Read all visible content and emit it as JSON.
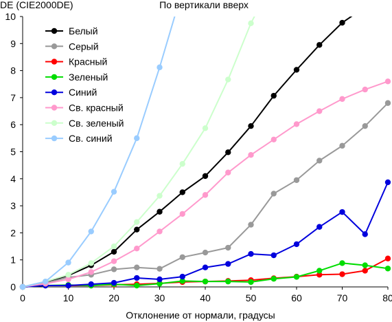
{
  "chart_data": {
    "type": "line",
    "title": "По вертикали вверх",
    "ylabel": "DE (CIE2000DE)",
    "xlabel": "Отклонение от нормали, градусы",
    "xlim": [
      0,
      80
    ],
    "ylim": [
      0,
      10
    ],
    "x_ticks": [
      0,
      10,
      20,
      30,
      40,
      50,
      60,
      70,
      80
    ],
    "y_ticks": [
      0,
      1,
      2,
      3,
      4,
      5,
      6,
      7,
      8,
      9,
      10
    ],
    "grid": false,
    "legend_position": "top-left",
    "series": [
      {
        "name": "Белый",
        "color": "#000000",
        "x": [
          0,
          5,
          10,
          15,
          20,
          25,
          30,
          35,
          40,
          45,
          50,
          55,
          60,
          65,
          70,
          75
        ],
        "y": [
          0,
          0.18,
          0.42,
          0.8,
          1.3,
          2.12,
          2.78,
          3.5,
          4.1,
          4.98,
          5.95,
          7.07,
          8.03,
          8.95,
          9.77,
          10.35
        ]
      },
      {
        "name": "Серый",
        "color": "#999999",
        "x": [
          0,
          5,
          10,
          15,
          20,
          25,
          30,
          35,
          40,
          45,
          50,
          55,
          60,
          65,
          70,
          75,
          80
        ],
        "y": [
          0,
          0.15,
          0.35,
          0.45,
          0.65,
          0.72,
          0.67,
          1.1,
          1.27,
          1.45,
          2.3,
          3.45,
          3.95,
          4.67,
          5.22,
          5.95,
          6.8
        ]
      },
      {
        "name": "Красный",
        "color": "#ff0000",
        "x": [
          0,
          5,
          10,
          15,
          20,
          25,
          30,
          35,
          40,
          45,
          50,
          55,
          60,
          65,
          70,
          75,
          80
        ],
        "y": [
          0,
          0.05,
          0.05,
          0.05,
          0.08,
          0.1,
          0.13,
          0.18,
          0.2,
          0.22,
          0.25,
          0.32,
          0.38,
          0.45,
          0.47,
          0.6,
          1.05
        ]
      },
      {
        "name": "Зеленый",
        "color": "#00dd00",
        "x": [
          0,
          5,
          10,
          15,
          20,
          25,
          30,
          35,
          40,
          45,
          50,
          55,
          60,
          65,
          70,
          75,
          80
        ],
        "y": [
          0,
          0.05,
          0.07,
          0.05,
          0.1,
          0.05,
          0.12,
          0.22,
          0.2,
          0.2,
          0.18,
          0.3,
          0.37,
          0.6,
          0.88,
          0.8,
          0.68
        ]
      },
      {
        "name": "Синий",
        "color": "#0000dd",
        "x": [
          0,
          5,
          10,
          15,
          20,
          25,
          30,
          35,
          40,
          45,
          50,
          55,
          60,
          65,
          70,
          75,
          80
        ],
        "y": [
          0,
          0.05,
          0.05,
          0.1,
          0.15,
          0.33,
          0.28,
          0.38,
          0.72,
          0.85,
          1.22,
          1.17,
          1.58,
          2.22,
          2.77,
          1.95,
          3.87
        ]
      },
      {
        "name": "Св. красный",
        "color": "#ff99cc",
        "x": [
          0,
          5,
          10,
          15,
          20,
          25,
          30,
          35,
          40,
          45,
          50,
          55,
          60,
          65,
          70,
          75,
          80
        ],
        "y": [
          0,
          0.12,
          0.28,
          0.55,
          0.95,
          1.42,
          2.05,
          2.7,
          3.4,
          4.23,
          4.88,
          5.45,
          6.02,
          6.5,
          6.95,
          7.3,
          7.6
        ]
      },
      {
        "name": "Св. зеленый",
        "color": "#ccffcc",
        "x": [
          0,
          5,
          10,
          15,
          20,
          25,
          30,
          35,
          40,
          45,
          50,
          52
        ],
        "y": [
          0,
          0.2,
          0.45,
          0.88,
          1.5,
          2.4,
          3.37,
          4.55,
          5.87,
          7.67,
          9.75,
          10.4
        ]
      },
      {
        "name": "Св. синий",
        "color": "#99ccff",
        "x": [
          0,
          5,
          10,
          15,
          20,
          25,
          30,
          34
        ],
        "y": [
          0,
          0.2,
          0.9,
          2.05,
          3.52,
          5.5,
          8.12,
          10.4
        ]
      }
    ]
  }
}
